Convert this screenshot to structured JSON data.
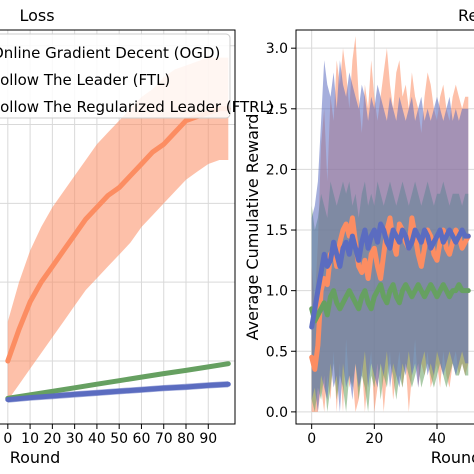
{
  "chart_data": [
    {
      "type": "line",
      "title": "Loss",
      "xlabel": "Round",
      "ylabel": "",
      "xlim": [
        -8,
        102
      ],
      "ylim": [
        -6,
        94
      ],
      "xticks": [
        0,
        10,
        20,
        30,
        40,
        50,
        60,
        70,
        80,
        90
      ],
      "xtick_labels": [
        "0",
        "10",
        "20",
        "30",
        "40",
        "50",
        "60",
        "70",
        "80",
        "90"
      ],
      "grid": true,
      "legend_position": "top",
      "legend": [
        {
          "label": "Online Gradient Decent (OGD)",
          "color": "#fc8d62"
        },
        {
          "label": "Follow The Leader (FTL)",
          "color": "#66a061"
        },
        {
          "label": "Follow The Regularized Leader (FTRL)",
          "color": "#5b6cc0"
        }
      ],
      "series": [
        {
          "name": "Online Gradient Decent (OGD)",
          "color": "#fc8d62",
          "x": [
            0,
            5,
            10,
            15,
            20,
            25,
            30,
            35,
            40,
            45,
            50,
            55,
            60,
            65,
            70,
            75,
            80,
            85,
            90,
            95,
            99
          ],
          "y": [
            10,
            18,
            25,
            30,
            34,
            38,
            42,
            46,
            49,
            52,
            54,
            57,
            60,
            63,
            65,
            68,
            71,
            72,
            73,
            74,
            74
          ],
          "lower": [
            0,
            4,
            8,
            12,
            16,
            20,
            24,
            28,
            31,
            34,
            37,
            40,
            44,
            47,
            50,
            53,
            56,
            58,
            60,
            61,
            61
          ],
          "upper": [
            20,
            30,
            38,
            44,
            49,
            53,
            57,
            61,
            65,
            68,
            71,
            74,
            77,
            79,
            82,
            84,
            85,
            86,
            87,
            87,
            87
          ]
        },
        {
          "name": "Follow The Leader (FTL)",
          "color": "#66a061",
          "x": [
            0,
            10,
            20,
            30,
            40,
            50,
            60,
            70,
            80,
            90,
            99
          ],
          "y": [
            0.5,
            1.4,
            2.3,
            3.2,
            4.1,
            5.0,
            5.9,
            6.8,
            7.6,
            8.5,
            9.3
          ],
          "lower": [
            0,
            0.9,
            1.8,
            2.7,
            3.6,
            4.5,
            5.4,
            6.3,
            7.1,
            8.0,
            8.8
          ],
          "upper": [
            1.0,
            1.9,
            2.8,
            3.7,
            4.6,
            5.5,
            6.4,
            7.3,
            8.1,
            9.0,
            9.8
          ]
        },
        {
          "name": "Follow The Regularized Leader (FTRL)",
          "color": "#5b6cc0",
          "x": [
            0,
            10,
            20,
            30,
            40,
            50,
            60,
            70,
            80,
            90,
            99
          ],
          "y": [
            0.2,
            0.7,
            1.1,
            1.5,
            1.9,
            2.3,
            2.7,
            3.1,
            3.4,
            3.8,
            4.1
          ],
          "lower": [
            -0.6,
            -0.1,
            0.3,
            0.7,
            1.1,
            1.5,
            1.9,
            2.3,
            2.6,
            3.0,
            3.3
          ],
          "upper": [
            1.0,
            1.5,
            1.9,
            2.3,
            2.7,
            3.1,
            3.5,
            3.9,
            4.2,
            4.6,
            4.9
          ]
        }
      ]
    },
    {
      "type": "line",
      "title": "Reward",
      "xlabel": "Round",
      "ylabel": "Average Cumulative Reward",
      "xlim": [
        -5,
        55
      ],
      "ylim": [
        -0.1,
        3.15
      ],
      "xticks": [
        0,
        20,
        40
      ],
      "xtick_labels": [
        "0",
        "20",
        "40"
      ],
      "yticks": [
        0.0,
        0.5,
        1.0,
        1.5,
        2.0,
        2.5,
        3.0
      ],
      "ytick_labels": [
        "0.0",
        "0.5",
        "1.0",
        "1.5",
        "2.0",
        "2.5",
        "3.0"
      ],
      "grid": true,
      "series": [
        {
          "color": "#fc8d62",
          "x": [
            0,
            1,
            2,
            3,
            4,
            5,
            6,
            7,
            8,
            9,
            10,
            11,
            12,
            13,
            14,
            15,
            16,
            17,
            18,
            19,
            20,
            21,
            22,
            23,
            24,
            25,
            26,
            27,
            28,
            29,
            30,
            31,
            32,
            33,
            34,
            35,
            36,
            37,
            38,
            39,
            40,
            41,
            42,
            43,
            44,
            45,
            46,
            47,
            48,
            49,
            50
          ],
          "y": [
            0.45,
            0.35,
            0.55,
            1.0,
            1.1,
            1.05,
            1.3,
            1.35,
            1.2,
            1.4,
            1.5,
            1.55,
            1.45,
            1.6,
            1.4,
            1.2,
            1.15,
            1.25,
            1.1,
            1.3,
            1.35,
            1.2,
            1.1,
            1.3,
            1.5,
            1.6,
            1.4,
            1.3,
            1.55,
            1.5,
            1.4,
            1.35,
            1.6,
            1.45,
            1.3,
            1.2,
            1.35,
            1.5,
            1.45,
            1.3,
            1.25,
            1.4,
            1.5,
            1.35,
            1.3,
            1.4,
            1.5,
            1.45,
            1.35,
            1.4,
            1.45
          ],
          "lower": [
            0.0,
            0.0,
            0.0,
            0.2,
            0.0,
            0.3,
            0.1,
            0.5,
            0.0,
            0.4,
            0.0,
            0.6,
            0.2,
            0.3,
            0.0,
            0.1,
            0.4,
            0.0,
            0.3,
            0.5,
            0.0,
            0.2,
            0.4,
            0.0,
            0.3,
            0.5,
            0.1,
            0.3,
            0.5,
            0.2,
            0.4,
            0.0,
            0.3,
            0.6,
            0.2,
            0.4,
            0.3,
            0.5,
            0.2,
            0.3,
            0.4,
            0.2,
            0.5,
            0.3,
            0.2,
            0.4,
            0.5,
            0.3,
            0.4,
            0.3,
            0.4
          ],
          "upper": [
            1.2,
            0.9,
            1.4,
            2.2,
            2.5,
            1.9,
            2.6,
            2.4,
            2.9,
            2.7,
            3.0,
            2.8,
            2.5,
            2.9,
            3.1,
            2.6,
            2.3,
            2.7,
            2.5,
            2.9,
            2.6,
            2.4,
            2.6,
            2.8,
            3.0,
            2.7,
            2.5,
            2.8,
            2.9,
            2.6,
            2.7,
            2.5,
            2.8,
            2.6,
            2.5,
            2.3,
            2.6,
            2.8,
            2.7,
            2.5,
            2.4,
            2.6,
            2.7,
            2.5,
            2.4,
            2.6,
            2.7,
            2.6,
            2.5,
            2.6,
            2.6
          ]
        },
        {
          "color": "#66a061",
          "x": [
            0,
            1,
            2,
            3,
            4,
            5,
            6,
            7,
            8,
            9,
            10,
            11,
            12,
            13,
            14,
            15,
            16,
            17,
            18,
            19,
            20,
            21,
            22,
            23,
            24,
            25,
            26,
            27,
            28,
            29,
            30,
            31,
            32,
            33,
            34,
            35,
            36,
            37,
            38,
            39,
            40,
            41,
            42,
            43,
            44,
            45,
            46,
            47,
            48,
            49,
            50
          ],
          "y": [
            0.85,
            0.75,
            0.8,
            0.85,
            0.9,
            0.8,
            0.95,
            1.0,
            0.9,
            0.85,
            0.9,
            0.95,
            1.0,
            0.95,
            0.9,
            0.85,
            0.95,
            1.0,
            0.9,
            0.85,
            0.95,
            1.0,
            1.05,
            0.95,
            0.9,
            1.0,
            1.05,
            0.95,
            0.9,
            1.0,
            1.05,
            1.0,
            0.95,
            1.0,
            1.05,
            1.0,
            0.95,
            1.0,
            1.05,
            1.0,
            0.95,
            1.0,
            1.05,
            1.0,
            0.95,
            1.0,
            1.0,
            1.05,
            1.0,
            1.0,
            1.0
          ],
          "lower": [
            0.1,
            0.0,
            0.2,
            0.1,
            0.3,
            0.0,
            0.2,
            0.4,
            0.1,
            0.3,
            0.2,
            0.0,
            0.3,
            0.2,
            0.4,
            0.1,
            0.3,
            0.2,
            0.0,
            0.3,
            0.2,
            0.4,
            0.1,
            0.3,
            0.2,
            0.4,
            0.3,
            0.1,
            0.3,
            0.2,
            0.4,
            0.3,
            0.2,
            0.3,
            0.4,
            0.2,
            0.3,
            0.4,
            0.3,
            0.2,
            0.3,
            0.4,
            0.3,
            0.2,
            0.3,
            0.4,
            0.3,
            0.3,
            0.4,
            0.3,
            0.3
          ],
          "upper": [
            1.7,
            1.5,
            1.6,
            1.8,
            1.7,
            1.6,
            1.9,
            1.8,
            1.7,
            1.8,
            1.9,
            1.8,
            1.9,
            1.7,
            1.8,
            1.6,
            1.8,
            1.9,
            1.7,
            1.8,
            1.7,
            1.9,
            1.8,
            1.7,
            1.8,
            1.9,
            1.8,
            1.7,
            1.8,
            1.9,
            1.8,
            1.7,
            1.8,
            1.9,
            1.8,
            1.7,
            1.8,
            1.9,
            1.8,
            1.7,
            1.8,
            1.8,
            1.9,
            1.8,
            1.7,
            1.8,
            1.8,
            1.8,
            1.7,
            1.8,
            1.8
          ]
        },
        {
          "color": "#5b6cc0",
          "x": [
            0,
            1,
            2,
            3,
            4,
            5,
            6,
            7,
            8,
            9,
            10,
            11,
            12,
            13,
            14,
            15,
            16,
            17,
            18,
            19,
            20,
            21,
            22,
            23,
            24,
            25,
            26,
            27,
            28,
            29,
            30,
            31,
            32,
            33,
            34,
            35,
            36,
            37,
            38,
            39,
            40,
            41,
            42,
            43,
            44,
            45,
            46,
            47,
            48,
            49,
            50
          ],
          "y": [
            0.7,
            0.85,
            1.0,
            1.15,
            1.3,
            1.2,
            1.25,
            1.4,
            1.3,
            1.2,
            1.35,
            1.4,
            1.3,
            1.45,
            1.35,
            1.25,
            1.4,
            1.5,
            1.35,
            1.45,
            1.5,
            1.4,
            1.55,
            1.5,
            1.4,
            1.35,
            1.5,
            1.45,
            1.4,
            1.5,
            1.45,
            1.35,
            1.4,
            1.5,
            1.45,
            1.4,
            1.5,
            1.45,
            1.35,
            1.4,
            1.45,
            1.5,
            1.4,
            1.45,
            1.5,
            1.45,
            1.4,
            1.45,
            1.5,
            1.45,
            1.45
          ],
          "lower": [
            0.1,
            0.2,
            0.0,
            0.3,
            0.2,
            0.1,
            0.4,
            0.2,
            0.3,
            0.0,
            0.4,
            0.2,
            0.3,
            0.1,
            0.4,
            0.2,
            0.3,
            0.5,
            0.2,
            0.4,
            0.3,
            0.2,
            0.4,
            0.3,
            0.5,
            0.2,
            0.4,
            0.3,
            0.2,
            0.4,
            0.3,
            0.5,
            0.3,
            0.4,
            0.2,
            0.4,
            0.5,
            0.3,
            0.4,
            0.3,
            0.5,
            0.4,
            0.3,
            0.4,
            0.5,
            0.4,
            0.3,
            0.4,
            0.5,
            0.4,
            0.4
          ],
          "upper": [
            1.6,
            1.7,
            1.9,
            2.4,
            2.9,
            2.7,
            2.6,
            2.8,
            2.5,
            2.9,
            2.7,
            2.6,
            2.8,
            2.7,
            2.6,
            2.5,
            2.7,
            2.6,
            2.4,
            2.6,
            2.5,
            2.7,
            2.6,
            2.5,
            2.4,
            2.6,
            2.5,
            2.4,
            2.6,
            2.5,
            2.4,
            2.5,
            2.6,
            2.4,
            2.5,
            2.6,
            2.4,
            2.5,
            2.4,
            2.5,
            2.6,
            2.5,
            2.4,
            2.5,
            2.6,
            2.4,
            2.5,
            2.4,
            2.5,
            2.5,
            2.5
          ]
        }
      ]
    }
  ]
}
